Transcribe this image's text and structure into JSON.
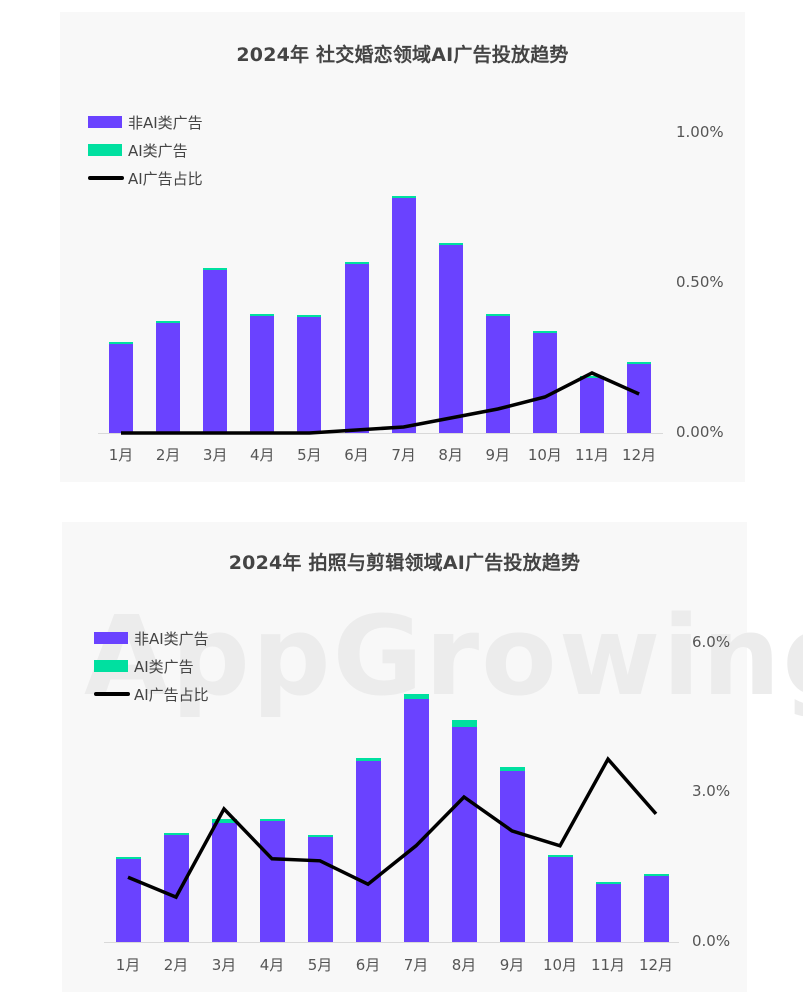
{
  "colors": {
    "non_ai": "#6a42ff",
    "ai": "#00e0a0",
    "ratio_line": "#000000",
    "panel_bg": "#f8f8f8",
    "title_text": "#444444",
    "axis_text": "#555555"
  },
  "legend": {
    "non_ai": "非AI类广告",
    "ai": "AI类广告",
    "ratio": "AI广告占比"
  },
  "watermark": "AppGrowing",
  "chart_data": [
    {
      "type": "bar",
      "stacked": true,
      "title": "2024年  社交婚恋领域AI广告投放趋势",
      "categories": [
        "1月",
        "2月",
        "3月",
        "4月",
        "5月",
        "6月",
        "7月",
        "8月",
        "9月",
        "10月",
        "11月",
        "12月"
      ],
      "series": [
        {
          "name": "非AI类广告",
          "type": "bar",
          "axis": "left (unlabeled, relative units)",
          "values": [
            89,
            110,
            163,
            117,
            116,
            169,
            235,
            188,
            117,
            100,
            55,
            69
          ]
        },
        {
          "name": "AI类广告",
          "type": "bar",
          "axis": "left (unlabeled, relative units)",
          "values": [
            2,
            2,
            2,
            2,
            2,
            2,
            2,
            2,
            2,
            2,
            2,
            2
          ]
        },
        {
          "name": "AI广告占比",
          "type": "line",
          "axis": "right",
          "unit": "%",
          "values": [
            0.0,
            0.0,
            0.0,
            0.0,
            0.0,
            0.01,
            0.02,
            0.05,
            0.08,
            0.12,
            0.2,
            0.13
          ]
        }
      ],
      "y_right_ticks": [
        "0.00%",
        "0.50%",
        "1.00%"
      ],
      "y_right_range": [
        0,
        1.0
      ],
      "legend_position": "top-left",
      "grid": false
    },
    {
      "type": "bar",
      "stacked": true,
      "title": "2024年  拍照与剪辑领域AI广告投放趋势",
      "categories": [
        "1月",
        "2月",
        "3月",
        "4月",
        "5月",
        "6月",
        "7月",
        "8月",
        "9月",
        "10月",
        "11月",
        "12月"
      ],
      "series": [
        {
          "name": "非AI类广告",
          "type": "bar",
          "axis": "left (unlabeled, relative units)",
          "values": [
            83,
            107,
            119,
            121,
            105,
            181,
            243,
            215,
            171,
            85,
            58,
            66
          ]
        },
        {
          "name": "AI类广告",
          "type": "bar",
          "axis": "left (unlabeled, relative units)",
          "values": [
            2,
            2,
            4,
            2,
            2,
            3,
            5,
            7,
            4,
            2,
            2,
            2
          ]
        },
        {
          "name": "AI广告占比",
          "type": "line",
          "axis": "right",
          "unit": "%",
          "values": [
            1.3,
            0.9,
            2.67,
            1.67,
            1.63,
            1.16,
            1.93,
            2.91,
            2.23,
            1.93,
            3.67,
            2.57
          ]
        }
      ],
      "y_right_ticks": [
        "0.0%",
        "3.0%",
        "6.0%"
      ],
      "y_right_range": [
        0,
        6.0
      ],
      "legend_position": "top-left",
      "grid": false
    }
  ]
}
